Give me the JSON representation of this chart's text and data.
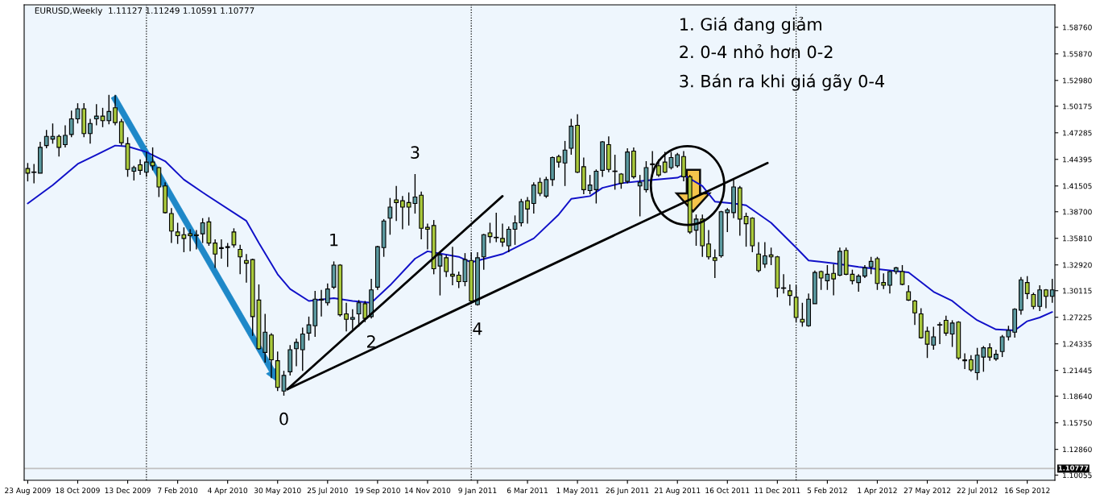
{
  "chart_data": {
    "type": "candlestick",
    "title": "EURUSD,Weekly  1.11127 1.11249 1.10591 1.10777",
    "x": [
      "2009-08-23",
      "2009-08-30",
      "2009-09-06",
      "2009-09-13",
      "2009-09-20",
      "2009-09-27",
      "2009-10-04",
      "2009-10-11",
      "2009-10-18",
      "2009-10-25",
      "2009-11-01",
      "2009-11-08",
      "2009-11-15",
      "2009-11-22",
      "2009-11-29",
      "2009-12-06",
      "2009-12-13",
      "2009-12-20",
      "2009-12-27",
      "2010-01-03",
      "2010-01-10",
      "2010-01-17",
      "2010-01-24",
      "2010-01-31",
      "2010-02-07",
      "2010-02-14",
      "2010-02-21",
      "2010-02-28",
      "2010-03-07",
      "2010-03-14",
      "2010-03-21",
      "2010-03-28",
      "2010-04-04",
      "2010-04-11",
      "2010-04-18",
      "2010-04-25",
      "2010-05-02",
      "2010-05-09",
      "2010-05-16",
      "2010-05-23",
      "2010-05-30",
      "2010-06-06",
      "2010-06-13",
      "2010-06-20",
      "2010-06-27",
      "2010-07-04",
      "2010-07-11",
      "2010-07-18",
      "2010-07-25",
      "2010-08-01",
      "2010-08-08",
      "2010-08-15",
      "2010-08-22",
      "2010-08-29",
      "2010-09-05",
      "2010-09-12",
      "2010-09-19",
      "2010-09-26",
      "2010-10-03",
      "2010-10-10",
      "2010-10-17",
      "2010-10-24",
      "2010-10-31",
      "2010-11-07",
      "2010-11-14",
      "2010-11-21",
      "2010-11-28",
      "2010-12-05",
      "2010-12-12",
      "2010-12-19",
      "2010-12-26",
      "2011-01-02",
      "2011-01-09",
      "2011-01-16",
      "2011-01-23",
      "2011-01-30",
      "2011-02-06",
      "2011-02-13",
      "2011-02-20",
      "2011-02-27",
      "2011-03-06",
      "2011-03-13",
      "2011-03-20",
      "2011-03-27",
      "2011-04-03",
      "2011-04-10",
      "2011-04-17",
      "2011-04-24",
      "2011-05-01",
      "2011-05-08",
      "2011-05-15",
      "2011-05-22",
      "2011-05-29",
      "2011-06-05",
      "2011-06-12",
      "2011-06-19",
      "2011-06-26",
      "2011-07-03",
      "2011-07-10",
      "2011-07-17",
      "2011-07-24",
      "2011-07-31",
      "2011-08-07",
      "2011-08-14",
      "2011-08-21",
      "2011-08-28",
      "2011-09-04",
      "2011-09-11",
      "2011-09-18",
      "2011-09-25",
      "2011-10-02",
      "2011-10-09",
      "2011-10-16",
      "2011-10-23",
      "2011-10-30",
      "2011-11-06",
      "2011-11-13",
      "2011-11-20",
      "2011-11-27",
      "2011-12-04",
      "2011-12-11",
      "2011-12-18",
      "2011-12-25",
      "2012-01-01",
      "2012-01-08",
      "2012-01-15",
      "2012-01-22",
      "2012-01-29",
      "2012-02-05",
      "2012-02-12",
      "2012-02-19",
      "2012-02-26",
      "2012-03-04",
      "2012-03-11",
      "2012-03-18",
      "2012-03-25",
      "2012-04-01",
      "2012-04-08",
      "2012-04-15",
      "2012-04-22",
      "2012-04-29",
      "2012-05-06",
      "2012-05-13",
      "2012-05-20",
      "2012-05-27",
      "2012-06-03",
      "2012-06-10",
      "2012-06-17",
      "2012-06-24",
      "2012-07-01",
      "2012-07-08",
      "2012-07-15",
      "2012-07-22",
      "2012-07-29",
      "2012-08-05",
      "2012-08-12",
      "2012-08-19",
      "2012-08-26",
      "2012-09-02",
      "2012-09-09",
      "2012-09-16",
      "2012-09-23",
      "2012-09-30",
      "2012-10-07",
      "2012-10-14"
    ],
    "ohlc": [
      [
        1.434,
        1.44,
        1.42,
        1.429
      ],
      [
        1.43,
        1.439,
        1.418,
        1.43
      ],
      [
        1.429,
        1.463,
        1.429,
        1.457
      ],
      [
        1.459,
        1.476,
        1.456,
        1.469
      ],
      [
        1.466,
        1.483,
        1.461,
        1.469
      ],
      [
        1.469,
        1.471,
        1.447,
        1.457
      ],
      [
        1.46,
        1.481,
        1.457,
        1.47
      ],
      [
        1.471,
        1.497,
        1.468,
        1.488
      ],
      [
        1.488,
        1.505,
        1.483,
        1.499
      ],
      [
        1.499,
        1.505,
        1.468,
        1.472
      ],
      [
        1.472,
        1.488,
        1.461,
        1.483
      ],
      [
        1.488,
        1.504,
        1.481,
        1.491
      ],
      [
        1.491,
        1.5,
        1.479,
        1.486
      ],
      [
        1.486,
        1.514,
        1.482,
        1.496
      ],
      [
        1.5,
        1.514,
        1.481,
        1.484
      ],
      [
        1.485,
        1.488,
        1.459,
        1.462
      ],
      [
        1.461,
        1.468,
        1.425,
        1.433
      ],
      [
        1.431,
        1.437,
        1.421,
        1.435
      ],
      [
        1.438,
        1.444,
        1.427,
        1.432
      ],
      [
        1.43,
        1.452,
        1.425,
        1.441
      ],
      [
        1.441,
        1.457,
        1.432,
        1.437
      ],
      [
        1.435,
        1.436,
        1.403,
        1.414
      ],
      [
        1.415,
        1.419,
        1.385,
        1.386
      ],
      [
        1.385,
        1.391,
        1.353,
        1.366
      ],
      [
        1.365,
        1.375,
        1.352,
        1.361
      ],
      [
        1.362,
        1.37,
        1.343,
        1.358
      ],
      [
        1.363,
        1.368,
        1.344,
        1.361
      ],
      [
        1.362,
        1.367,
        1.346,
        1.361
      ],
      [
        1.363,
        1.38,
        1.353,
        1.375
      ],
      [
        1.376,
        1.381,
        1.35,
        1.353
      ],
      [
        1.353,
        1.357,
        1.326,
        1.341
      ],
      [
        1.348,
        1.357,
        1.336,
        1.347
      ],
      [
        1.348,
        1.353,
        1.327,
        1.349
      ],
      [
        1.365,
        1.369,
        1.348,
        1.351
      ],
      [
        1.346,
        1.351,
        1.319,
        1.338
      ],
      [
        1.334,
        1.341,
        1.31,
        1.331
      ],
      [
        1.335,
        1.336,
        1.252,
        1.273
      ],
      [
        1.291,
        1.308,
        1.237,
        1.238
      ],
      [
        1.234,
        1.276,
        1.223,
        1.256
      ],
      [
        1.253,
        1.255,
        1.206,
        1.226
      ],
      [
        1.225,
        1.235,
        1.192,
        1.196
      ],
      [
        1.192,
        1.214,
        1.187,
        1.209
      ],
      [
        1.213,
        1.242,
        1.209,
        1.237
      ],
      [
        1.238,
        1.249,
        1.219,
        1.245
      ],
      [
        1.237,
        1.261,
        1.214,
        1.254
      ],
      [
        1.255,
        1.273,
        1.247,
        1.264
      ],
      [
        1.263,
        1.301,
        1.251,
        1.292
      ],
      [
        1.291,
        1.302,
        1.273,
        1.292
      ],
      [
        1.288,
        1.309,
        1.285,
        1.303
      ],
      [
        1.305,
        1.333,
        1.303,
        1.329
      ],
      [
        1.329,
        1.33,
        1.273,
        1.275
      ],
      [
        1.276,
        1.288,
        1.257,
        1.27
      ],
      [
        1.27,
        1.281,
        1.259,
        1.272
      ],
      [
        1.276,
        1.291,
        1.262,
        1.288
      ],
      [
        1.287,
        1.29,
        1.267,
        1.271
      ],
      [
        1.273,
        1.314,
        1.271,
        1.302
      ],
      [
        1.305,
        1.35,
        1.302,
        1.349
      ],
      [
        1.348,
        1.379,
        1.338,
        1.377
      ],
      [
        1.38,
        1.402,
        1.362,
        1.392
      ],
      [
        1.4,
        1.415,
        1.377,
        1.397
      ],
      [
        1.399,
        1.404,
        1.368,
        1.392
      ],
      [
        1.397,
        1.408,
        1.372,
        1.392
      ],
      [
        1.396,
        1.428,
        1.385,
        1.403
      ],
      [
        1.405,
        1.409,
        1.357,
        1.369
      ],
      [
        1.37,
        1.374,
        1.346,
        1.368
      ],
      [
        1.372,
        1.378,
        1.319,
        1.325
      ],
      [
        1.328,
        1.343,
        1.296,
        1.34
      ],
      [
        1.337,
        1.34,
        1.316,
        1.322
      ],
      [
        1.319,
        1.349,
        1.307,
        1.317
      ],
      [
        1.318,
        1.322,
        1.304,
        1.311
      ],
      [
        1.311,
        1.342,
        1.306,
        1.335
      ],
      [
        1.334,
        1.343,
        1.288,
        1.29
      ],
      [
        1.286,
        1.343,
        1.285,
        1.337
      ],
      [
        1.338,
        1.363,
        1.324,
        1.362
      ],
      [
        1.364,
        1.375,
        1.353,
        1.36
      ],
      [
        1.359,
        1.386,
        1.354,
        1.359
      ],
      [
        1.358,
        1.374,
        1.349,
        1.354
      ],
      [
        1.35,
        1.371,
        1.343,
        1.368
      ],
      [
        1.368,
        1.383,
        1.351,
        1.375
      ],
      [
        1.375,
        1.401,
        1.371,
        1.398
      ],
      [
        1.399,
        1.403,
        1.374,
        1.39
      ],
      [
        1.396,
        1.419,
        1.385,
        1.416
      ],
      [
        1.419,
        1.424,
        1.404,
        1.407
      ],
      [
        1.404,
        1.425,
        1.402,
        1.422
      ],
      [
        1.422,
        1.447,
        1.415,
        1.446
      ],
      [
        1.447,
        1.449,
        1.435,
        1.441
      ],
      [
        1.44,
        1.464,
        1.415,
        1.454
      ],
      [
        1.456,
        1.488,
        1.449,
        1.48
      ],
      [
        1.481,
        1.493,
        1.429,
        1.43
      ],
      [
        1.436,
        1.446,
        1.406,
        1.411
      ],
      [
        1.41,
        1.427,
        1.406,
        1.416
      ],
      [
        1.411,
        1.433,
        1.396,
        1.431
      ],
      [
        1.432,
        1.464,
        1.425,
        1.463
      ],
      [
        1.46,
        1.469,
        1.43,
        1.433
      ],
      [
        1.431,
        1.449,
        1.411,
        1.431
      ],
      [
        1.428,
        1.429,
        1.412,
        1.418
      ],
      [
        1.42,
        1.456,
        1.418,
        1.452
      ],
      [
        1.453,
        1.457,
        1.423,
        1.425
      ],
      [
        1.415,
        1.427,
        1.382,
        1.419
      ],
      [
        1.411,
        1.442,
        1.408,
        1.435
      ],
      [
        1.438,
        1.453,
        1.425,
        1.439
      ],
      [
        1.437,
        1.444,
        1.425,
        1.427
      ],
      [
        1.441,
        1.452,
        1.429,
        1.43
      ],
      [
        1.435,
        1.452,
        1.433,
        1.446
      ],
      [
        1.437,
        1.451,
        1.435,
        1.449
      ],
      [
        1.447,
        1.453,
        1.42,
        1.425
      ],
      [
        1.425,
        1.427,
        1.363,
        1.365
      ],
      [
        1.367,
        1.384,
        1.35,
        1.379
      ],
      [
        1.379,
        1.384,
        1.338,
        1.35
      ],
      [
        1.352,
        1.367,
        1.335,
        1.338
      ],
      [
        1.337,
        1.346,
        1.315,
        1.334
      ],
      [
        1.339,
        1.388,
        1.337,
        1.387
      ],
      [
        1.386,
        1.391,
        1.365,
        1.389
      ],
      [
        1.386,
        1.423,
        1.38,
        1.414
      ],
      [
        1.413,
        1.415,
        1.361,
        1.379
      ],
      [
        1.382,
        1.386,
        1.349,
        1.374
      ],
      [
        1.38,
        1.381,
        1.343,
        1.35
      ],
      [
        1.341,
        1.354,
        1.321,
        1.323
      ],
      [
        1.33,
        1.354,
        1.326,
        1.339
      ],
      [
        1.34,
        1.348,
        1.329,
        1.338
      ],
      [
        1.338,
        1.339,
        1.294,
        1.304
      ],
      [
        1.304,
        1.319,
        1.298,
        1.304
      ],
      [
        1.301,
        1.308,
        1.285,
        1.296
      ],
      [
        1.294,
        1.307,
        1.267,
        1.272
      ],
      [
        1.27,
        1.288,
        1.262,
        1.267
      ],
      [
        1.263,
        1.298,
        1.262,
        1.292
      ],
      [
        1.287,
        1.323,
        1.287,
        1.321
      ],
      [
        1.322,
        1.323,
        1.302,
        1.315
      ],
      [
        1.312,
        1.329,
        1.302,
        1.319
      ],
      [
        1.32,
        1.33,
        1.296,
        1.314
      ],
      [
        1.318,
        1.348,
        1.317,
        1.344
      ],
      [
        1.345,
        1.348,
        1.318,
        1.319
      ],
      [
        1.319,
        1.324,
        1.308,
        1.312
      ],
      [
        1.31,
        1.319,
        1.3,
        1.317
      ],
      [
        1.317,
        1.329,
        1.315,
        1.326
      ],
      [
        1.327,
        1.338,
        1.319,
        1.333
      ],
      [
        1.336,
        1.338,
        1.302,
        1.309
      ],
      [
        1.31,
        1.32,
        1.303,
        1.307
      ],
      [
        1.307,
        1.323,
        1.298,
        1.322
      ],
      [
        1.322,
        1.327,
        1.319,
        1.326
      ],
      [
        1.322,
        1.329,
        1.307,
        1.308
      ],
      [
        1.3,
        1.307,
        1.29,
        1.291
      ],
      [
        1.29,
        1.291,
        1.264,
        1.277
      ],
      [
        1.276,
        1.282,
        1.249,
        1.25
      ],
      [
        1.257,
        1.262,
        1.228,
        1.243
      ],
      [
        1.242,
        1.262,
        1.237,
        1.251
      ],
      [
        1.264,
        1.267,
        1.243,
        1.264
      ],
      [
        1.269,
        1.274,
        1.252,
        1.255
      ],
      [
        1.254,
        1.269,
        1.24,
        1.266
      ],
      [
        1.267,
        1.268,
        1.226,
        1.228
      ],
      [
        1.226,
        1.233,
        1.216,
        1.225
      ],
      [
        1.226,
        1.231,
        1.213,
        1.215
      ],
      [
        1.212,
        1.239,
        1.204,
        1.231
      ],
      [
        1.229,
        1.241,
        1.213,
        1.239
      ],
      [
        1.239,
        1.244,
        1.225,
        1.229
      ],
      [
        1.227,
        1.237,
        1.225,
        1.232
      ],
      [
        1.235,
        1.253,
        1.229,
        1.251
      ],
      [
        1.251,
        1.263,
        1.247,
        1.258
      ],
      [
        1.256,
        1.282,
        1.25,
        1.281
      ],
      [
        1.28,
        1.316,
        1.275,
        1.313
      ],
      [
        1.31,
        1.317,
        1.292,
        1.298
      ],
      [
        1.297,
        1.299,
        1.281,
        1.284
      ],
      [
        1.284,
        1.307,
        1.279,
        1.302
      ],
      [
        1.302,
        1.303,
        1.282,
        1.295
      ],
      [
        1.295,
        1.314,
        1.288,
        1.302
      ]
    ],
    "colors": [
      "#a9c93c",
      "#000000",
      "#5b9aa0",
      "#5b9aa0",
      "#5b9aa0",
      "#a9c93c",
      "#5b9aa0",
      "#5b9aa0",
      "#5b9aa0",
      "#a9c93c",
      "#5b9aa0",
      "#5b9aa0",
      "#a9c93c",
      "#5b9aa0",
      "#a9c93c",
      "#a9c93c",
      "#a9c93c",
      "#5b9aa0",
      "#a9c93c",
      "#5b9aa0",
      "#a9c93c",
      "#a9c93c",
      "#a9c93c",
      "#a9c93c",
      "#a9c93c",
      "#a9c93c",
      "#a9c93c",
      "#a9c93c",
      "#5b9aa0",
      "#a9c93c",
      "#a9c93c",
      "#a9c93c",
      "#5b9aa0",
      "#a9c93c",
      "#a9c93c",
      "#a9c93c",
      "#a9c93c",
      "#a9c93c",
      "#5b9aa0",
      "#a9c93c",
      "#a9c93c",
      "#5b9aa0",
      "#5b9aa0",
      "#5b9aa0",
      "#5b9aa0",
      "#5b9aa0",
      "#5b9aa0",
      "#5b9aa0",
      "#5b9aa0",
      "#5b9aa0",
      "#a9c93c",
      "#a9c93c",
      "#5b9aa0",
      "#5b9aa0",
      "#a9c93c",
      "#5b9aa0",
      "#5b9aa0",
      "#5b9aa0",
      "#5b9aa0",
      "#a9c93c",
      "#a9c93c",
      "#a9c93c",
      "#5b9aa0",
      "#a9c93c",
      "#a9c93c",
      "#a9c93c",
      "#5b9aa0",
      "#a9c93c",
      "#a9c93c",
      "#a9c93c",
      "#5b9aa0",
      "#a9c93c",
      "#5b9aa0",
      "#5b9aa0",
      "#a9c93c",
      "#000000",
      "#a9c93c",
      "#5b9aa0",
      "#5b9aa0",
      "#5b9aa0",
      "#a9c93c",
      "#5b9aa0",
      "#a9c93c",
      "#5b9aa0",
      "#5b9aa0",
      "#a9c93c",
      "#5b9aa0",
      "#5b9aa0",
      "#a9c93c",
      "#a9c93c",
      "#5b9aa0",
      "#5b9aa0",
      "#5b9aa0",
      "#a9c93c",
      "#000000",
      "#a9c93c",
      "#5b9aa0",
      "#a9c93c",
      "#5b9aa0",
      "#5b9aa0",
      "#5b9aa0",
      "#a9c93c",
      "#a9c93c",
      "#5b9aa0",
      "#5b9aa0",
      "#a9c93c",
      "#a9c93c",
      "#5b9aa0",
      "#a9c93c",
      "#a9c93c",
      "#a9c93c",
      "#5b9aa0",
      "#5b9aa0",
      "#5b9aa0",
      "#a9c93c",
      "#a9c93c",
      "#a9c93c",
      "#a9c93c",
      "#5b9aa0",
      "#a9c93c",
      "#a9c93c",
      "#000000",
      "#a9c93c",
      "#a9c93c",
      "#a9c93c",
      "#5b9aa0",
      "#5b9aa0",
      "#a9c93c",
      "#5b9aa0",
      "#a9c93c",
      "#5b9aa0",
      "#a9c93c",
      "#a9c93c",
      "#5b9aa0",
      "#5b9aa0",
      "#5b9aa0",
      "#a9c93c",
      "#a9c93c",
      "#5b9aa0",
      "#5b9aa0",
      "#a9c93c",
      "#a9c93c",
      "#a9c93c",
      "#a9c93c",
      "#a9c93c",
      "#5b9aa0",
      "#000000",
      "#a9c93c",
      "#5b9aa0",
      "#a9c93c",
      "#a9c93c",
      "#a9c93c",
      "#5b9aa0",
      "#5b9aa0",
      "#a9c93c",
      "#5b9aa0",
      "#5b9aa0",
      "#5b9aa0",
      "#5b9aa0",
      "#5b9aa0",
      "#a9c93c",
      "#a9c93c",
      "#5b9aa0",
      "#a9c93c",
      "#5b9aa0"
    ],
    "series": [
      {
        "type": "line",
        "color": "#1010c8",
        "x": [
          "2009-08-23",
          "2009-09-20",
          "2009-10-18",
          "2009-11-08",
          "2009-11-29",
          "2009-12-13",
          "2010-01-03",
          "2010-01-24",
          "2010-02-14",
          "2010-03-07",
          "2010-04-25",
          "2010-05-09",
          "2010-05-30",
          "2010-06-13",
          "2010-07-04",
          "2010-08-01",
          "2010-08-22",
          "2010-09-12",
          "2010-10-03",
          "2010-10-31",
          "2010-11-14",
          "2010-12-19",
          "2011-01-02",
          "2011-02-06",
          "2011-03-13",
          "2011-04-10",
          "2011-04-24",
          "2011-05-15",
          "2011-05-29",
          "2011-06-19",
          "2011-07-17",
          "2011-08-21",
          "2011-08-28",
          "2011-09-18",
          "2011-10-02",
          "2011-10-23",
          "2011-11-06",
          "2011-12-04",
          "2012-01-01",
          "2012-01-15",
          "2012-02-12",
          "2012-03-11",
          "2012-04-08",
          "2012-05-06",
          "2012-06-03",
          "2012-06-24",
          "2012-07-08",
          "2012-07-22",
          "2012-08-12",
          "2012-09-02",
          "2012-09-16",
          "2012-09-30",
          "2012-10-14"
        ],
        "values": [
          1.396,
          1.416,
          1.439,
          1.449,
          1.459,
          1.458,
          1.452,
          1.442,
          1.422,
          1.408,
          1.377,
          1.353,
          1.319,
          1.303,
          1.29,
          1.293,
          1.29,
          1.288,
          1.307,
          1.336,
          1.344,
          1.338,
          1.332,
          1.341,
          1.358,
          1.384,
          1.401,
          1.404,
          1.413,
          1.418,
          1.421,
          1.424,
          1.427,
          1.415,
          1.398,
          1.396,
          1.394,
          1.375,
          1.348,
          1.334,
          1.331,
          1.327,
          1.324,
          1.321,
          1.3,
          1.29,
          1.279,
          1.269,
          1.259,
          1.258,
          1.268,
          1.272,
          1.278
        ]
      },
      {
        "type": "line",
        "color": "#000000",
        "x": [
          "2010-06-10",
          "2011-02-06"
        ],
        "values": [
          1.194,
          1.404
        ]
      },
      {
        "type": "line",
        "color": "#000000",
        "x": [
          "2010-06-10",
          "2011-11-30"
        ],
        "values": [
          1.194,
          1.44
        ]
      }
    ],
    "ref_lines": [
      {
        "axis": "x",
        "value": "2010-01-03",
        "color": "#000000",
        "line_style": "dotted"
      },
      {
        "axis": "x",
        "value": "2011-01-02",
        "color": "#000000",
        "line_style": "dotted"
      },
      {
        "axis": "x",
        "value": "2012-01-01",
        "color": "#000000",
        "line_style": "dotted"
      },
      {
        "axis": "y",
        "value": 1.10777,
        "label": "1.10777",
        "color": "#c0c0c0",
        "line_style": "solid"
      }
    ],
    "annotations": [
      "1. Giá đang giảm",
      "2. 0-4 nhỏ hơn 0-2",
      "3. Bán ra khi giá gãy 0-4",
      {
        "text": "0",
        "x": "2010-06-06",
        "y": 1.187
      },
      {
        "text": "1",
        "x": "2010-08-01",
        "y": 1.333
      },
      {
        "text": "2",
        "x": "2010-09-12",
        "y": 1.271
      },
      {
        "text": "3",
        "x": "2010-10-31",
        "y": 1.428
      },
      {
        "text": "4",
        "x": "2011-01-09",
        "y": 1.285
      }
    ],
    "xlim": [
      "2009-08-19",
      "2012-10-17"
    ],
    "xticks": [
      {
        "value": "2009-08-23",
        "label": "23 Aug 2009"
      },
      {
        "value": "2009-10-18",
        "label": "18 Oct 2009"
      },
      {
        "value": "2009-12-13",
        "label": "13 Dec 2009"
      },
      {
        "value": "2010-02-07",
        "label": "7 Feb 2010"
      },
      {
        "value": "2010-04-04",
        "label": "4 Apr 2010"
      },
      {
        "value": "2010-05-30",
        "label": "30 May 2010"
      },
      {
        "value": "2010-07-25",
        "label": "25 Jul 2010"
      },
      {
        "value": "2010-09-19",
        "label": "19 Sep 2010"
      },
      {
        "value": "2010-11-14",
        "label": "14 Nov 2010"
      },
      {
        "value": "2011-01-09",
        "label": "9 Jan 2011"
      },
      {
        "value": "2011-03-06",
        "label": "6 Mar 2011"
      },
      {
        "value": "2011-05-01",
        "label": "1 May 2011"
      },
      {
        "value": "2011-06-26",
        "label": "26 Jun 2011"
      },
      {
        "value": "2011-08-21",
        "label": "21 Aug 2011"
      },
      {
        "value": "2011-10-16",
        "label": "16 Oct 2011"
      },
      {
        "value": "2011-12-11",
        "label": "11 Dec 2011"
      },
      {
        "value": "2012-02-05",
        "label": "5 Feb 2012"
      },
      {
        "value": "2012-04-01",
        "label": "1 Apr 2012"
      },
      {
        "value": "2012-05-27",
        "label": "27 May 2012"
      },
      {
        "value": "2012-07-22",
        "label": "22 Jul 2012"
      },
      {
        "value": "2012-09-16",
        "label": "16 Sep 2012"
      }
    ],
    "ylim": [
      1.095,
      1.612
    ],
    "yticks": [
      {
        "value": 1.5876,
        "label": "1.58760"
      },
      {
        "value": 1.5587,
        "label": "1.55870"
      },
      {
        "value": 1.5298,
        "label": "1.52980"
      },
      {
        "value": 1.50175,
        "label": "1.50175"
      },
      {
        "value": 1.47285,
        "label": "1.47285"
      },
      {
        "value": 1.44395,
        "label": "1.44395"
      },
      {
        "value": 1.41505,
        "label": "1.41505"
      },
      {
        "value": 1.387,
        "label": "1.38700"
      },
      {
        "value": 1.3581,
        "label": "1.35810"
      },
      {
        "value": 1.3292,
        "label": "1.32920"
      },
      {
        "value": 1.30115,
        "label": "1.30115"
      },
      {
        "value": 1.27225,
        "label": "1.27225"
      },
      {
        "value": 1.24335,
        "label": "1.24335"
      },
      {
        "value": 1.21445,
        "label": "1.21445"
      },
      {
        "value": 1.1864,
        "label": "1.18640"
      },
      {
        "value": 1.1575,
        "label": "1.15750"
      },
      {
        "value": 1.1286,
        "label": "1.12860"
      },
      {
        "value": 1.10055,
        "label": "1.10055"
      }
    ]
  }
}
